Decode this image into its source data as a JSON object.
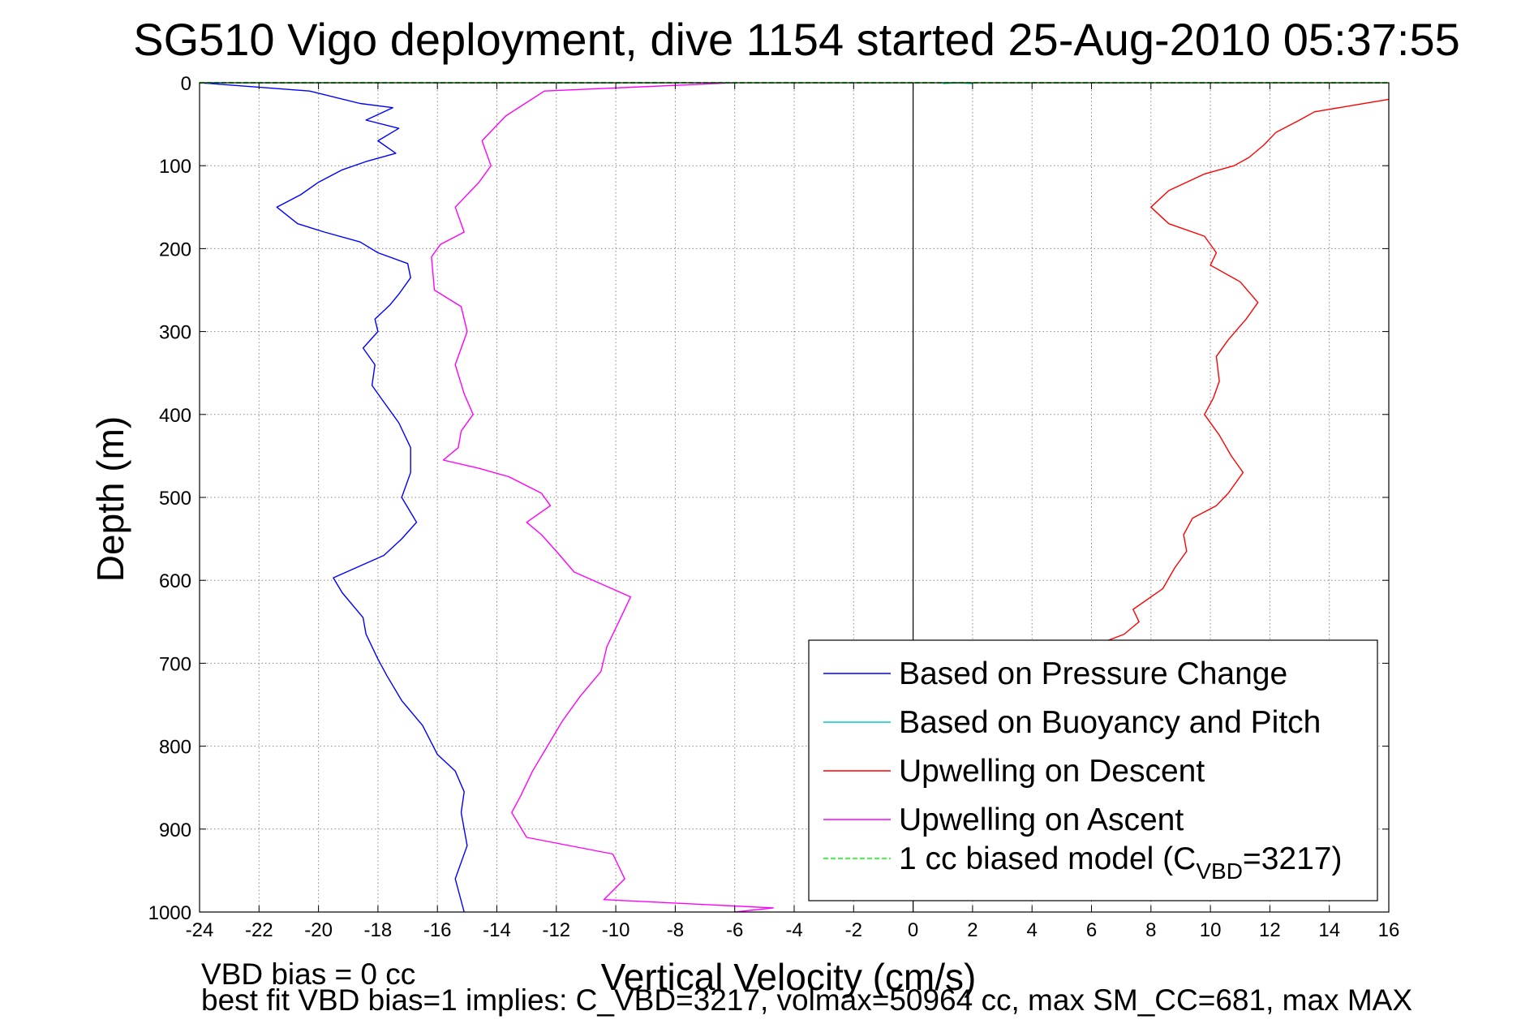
{
  "chart_data": {
    "type": "line",
    "title": "SG510 Vigo deployment, dive 1154 started 25-Aug-2010 05:37:55",
    "xlabel": "Vertical Velocity (cm/s)",
    "ylabel": "Depth (m)",
    "xlim": [
      -24,
      16
    ],
    "ylim": [
      0,
      1000
    ],
    "y_reversed": true,
    "xticks": [
      "-24",
      "-22",
      "-20",
      "-18",
      "-16",
      "-14",
      "-12",
      "-10",
      "-8",
      "-6",
      "-4",
      "-2",
      "0",
      "2",
      "4",
      "6",
      "8",
      "10",
      "12",
      "14",
      "16"
    ],
    "yticks": [
      "0",
      "100",
      "200",
      "300",
      "400",
      "500",
      "600",
      "700",
      "800",
      "900",
      "1000"
    ],
    "grid": true,
    "legend_position": "bottom-right",
    "zero_line": true,
    "series": [
      {
        "name": "Based on Pressure Change",
        "color": "#0000ff",
        "style": "solid",
        "points": [
          [
            -24,
            0
          ],
          [
            -20.3,
            10
          ],
          [
            -18.6,
            25
          ],
          [
            -17.5,
            30
          ],
          [
            -18.4,
            45
          ],
          [
            -17.3,
            55
          ],
          [
            -18,
            70
          ],
          [
            -17.4,
            85
          ],
          [
            -18.4,
            95
          ],
          [
            -19.2,
            105
          ],
          [
            -20,
            120
          ],
          [
            -20.6,
            135
          ],
          [
            -21.4,
            150
          ],
          [
            -20.7,
            170
          ],
          [
            -19.8,
            180
          ],
          [
            -18.6,
            192
          ],
          [
            -18,
            205
          ],
          [
            -17,
            218
          ],
          [
            -16.9,
            235
          ],
          [
            -17.3,
            255
          ],
          [
            -17.6,
            268
          ],
          [
            -18.1,
            285
          ],
          [
            -18,
            300
          ],
          [
            -18.5,
            320
          ],
          [
            -18.1,
            340
          ],
          [
            -18.2,
            365
          ],
          [
            -17.8,
            385
          ],
          [
            -17.3,
            410
          ],
          [
            -16.9,
            440
          ],
          [
            -16.9,
            470
          ],
          [
            -17.2,
            500
          ],
          [
            -16.7,
            530
          ],
          [
            -17.2,
            550
          ],
          [
            -17.8,
            570
          ],
          [
            -19.5,
            597
          ],
          [
            -19.2,
            615
          ],
          [
            -18.5,
            645
          ],
          [
            -18.4,
            665
          ],
          [
            -18,
            695
          ],
          [
            -17.7,
            715
          ],
          [
            -17.2,
            745
          ],
          [
            -16.5,
            775
          ],
          [
            -16,
            810
          ],
          [
            -15.4,
            830
          ],
          [
            -15.1,
            855
          ],
          [
            -15.2,
            880
          ],
          [
            -15,
            920
          ],
          [
            -15.4,
            960
          ],
          [
            -15.1,
            1000
          ]
        ]
      },
      {
        "name": "Based on Buoyancy and Pitch",
        "color": "#00cccc",
        "style": "solid",
        "points": [
          [
            1,
            1
          ],
          [
            1.5,
            0
          ],
          [
            2,
            1
          ]
        ]
      },
      {
        "name": "Upwelling on Descent",
        "color": "#ff0000",
        "style": "solid",
        "points": [
          [
            16,
            20
          ],
          [
            13.5,
            35
          ],
          [
            13,
            45
          ],
          [
            12.2,
            60
          ],
          [
            11.8,
            75
          ],
          [
            11.3,
            90
          ],
          [
            10.8,
            100
          ],
          [
            9.8,
            110
          ],
          [
            8.6,
            130
          ],
          [
            8,
            150
          ],
          [
            8.6,
            170
          ],
          [
            9.8,
            185
          ],
          [
            10.2,
            205
          ],
          [
            10,
            220
          ],
          [
            11,
            240
          ],
          [
            11.6,
            265
          ],
          [
            11.2,
            285
          ],
          [
            10.6,
            310
          ],
          [
            10.2,
            330
          ],
          [
            10.3,
            360
          ],
          [
            10.1,
            380
          ],
          [
            9.8,
            400
          ],
          [
            10.3,
            425
          ],
          [
            10.7,
            450
          ],
          [
            11.1,
            470
          ],
          [
            10.6,
            495
          ],
          [
            10.2,
            510
          ],
          [
            9.4,
            525
          ],
          [
            9.1,
            545
          ],
          [
            9.2,
            565
          ],
          [
            8.8,
            585
          ],
          [
            8.4,
            610
          ],
          [
            7.4,
            635
          ],
          [
            7.6,
            650
          ],
          [
            7.1,
            665
          ],
          [
            6,
            680
          ]
        ]
      },
      {
        "name": "Upwelling on Ascent",
        "color": "#ff00ff",
        "style": "solid",
        "points": [
          [
            -6,
            0
          ],
          [
            -12.4,
            10
          ],
          [
            -13.7,
            40
          ],
          [
            -14.5,
            70
          ],
          [
            -14.2,
            100
          ],
          [
            -14.6,
            120
          ],
          [
            -15.4,
            150
          ],
          [
            -15.1,
            180
          ],
          [
            -15.9,
            195
          ],
          [
            -16.2,
            210
          ],
          [
            -16.1,
            250
          ],
          [
            -15.2,
            270
          ],
          [
            -15,
            300
          ],
          [
            -15.4,
            340
          ],
          [
            -15.1,
            375
          ],
          [
            -14.8,
            400
          ],
          [
            -15.2,
            420
          ],
          [
            -15.3,
            440
          ],
          [
            -15.8,
            455
          ],
          [
            -14.6,
            465
          ],
          [
            -13.6,
            475
          ],
          [
            -12.5,
            495
          ],
          [
            -12.2,
            510
          ],
          [
            -13,
            530
          ],
          [
            -12.5,
            545
          ],
          [
            -12,
            565
          ],
          [
            -11.4,
            590
          ],
          [
            -9.5,
            620
          ],
          [
            -9.9,
            650
          ],
          [
            -10.3,
            680
          ],
          [
            -10.5,
            710
          ],
          [
            -11.2,
            740
          ],
          [
            -11.8,
            770
          ],
          [
            -12.3,
            800
          ],
          [
            -12.8,
            830
          ],
          [
            -13.2,
            860
          ],
          [
            -13.5,
            880
          ],
          [
            -13,
            910
          ],
          [
            -10.1,
            930
          ],
          [
            -9.7,
            960
          ],
          [
            -10.4,
            985
          ],
          [
            -4.7,
            995
          ],
          [
            -6,
            1000
          ]
        ]
      },
      {
        "name": "1 cc biased model (C",
        "name_subscript": "VBD",
        "name_suffix": "=3217)",
        "color": "#00ff00",
        "style": "dashed",
        "points": [
          [
            -24,
            0
          ],
          [
            16,
            0
          ]
        ]
      }
    ],
    "annotations": [
      "VBD bias = 0 cc",
      "best fit VBD bias=1 implies: C_VBD=3217, volmax=50964 cc, max SM_CC=681, max MAX"
    ]
  }
}
